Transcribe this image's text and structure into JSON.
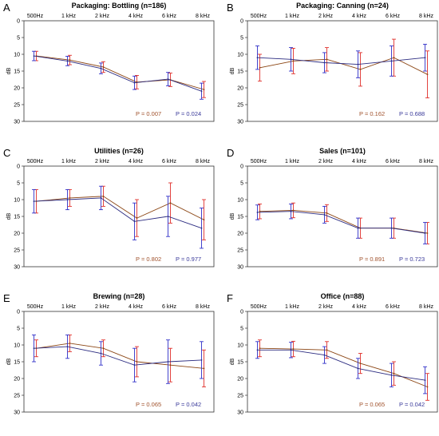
{
  "chart_data": [
    {
      "type": "line",
      "letter": "A",
      "title": "Packaging: Bottling (n=186)",
      "categories": [
        "500Hz",
        "1 kHz",
        "2 kHz",
        "4 kHz",
        "6 kHz",
        "8 kHz"
      ],
      "ylabel": "dB",
      "ylim": [
        0,
        30
      ],
      "yticks": [
        "0",
        "5",
        "10",
        "15",
        "20",
        "25",
        "30"
      ],
      "y_inverted": true,
      "series": [
        {
          "color": "#8B4513",
          "err_color": "#E0302B",
          "values": [
            10.5,
            11.7,
            13.8,
            18.3,
            17.6,
            20.5
          ],
          "err": [
            1.4,
            1.4,
            1.6,
            2.0,
            2.0,
            2.4
          ]
        },
        {
          "color": "#2B2B80",
          "err_color": "#3030C8",
          "values": [
            10.5,
            12.0,
            14.2,
            18.5,
            17.4,
            21.0
          ],
          "err": [
            1.4,
            1.4,
            1.6,
            2.0,
            2.0,
            2.4
          ]
        }
      ],
      "pvalues": [
        {
          "text": "P = 0.007",
          "color": "#A0522D"
        },
        {
          "text": "P = 0.024",
          "color": "#3A3A9A"
        }
      ]
    },
    {
      "type": "line",
      "letter": "B",
      "title": "Packaging: Canning (n=24)",
      "categories": [
        "500Hz",
        "1 kHz",
        "2 kHz",
        "4 kHz",
        "6 kHz",
        "8 kHz"
      ],
      "ylabel": "dB",
      "ylim": [
        0,
        30
      ],
      "yticks": [
        "0",
        "5",
        "10",
        "15",
        "20",
        "25",
        "30"
      ],
      "y_inverted": true,
      "series": [
        {
          "color": "#8B4513",
          "err_color": "#E0302B",
          "values": [
            14.0,
            12.0,
            11.5,
            14.5,
            11.0,
            16.0
          ],
          "err": [
            4.0,
            3.8,
            3.5,
            5.0,
            5.5,
            7.0
          ]
        },
        {
          "color": "#2B2B80",
          "err_color": "#3030C8",
          "values": [
            11.0,
            11.5,
            12.5,
            13.0,
            12.0,
            11.0
          ],
          "err": [
            3.5,
            3.5,
            3.0,
            4.0,
            4.5,
            4.0
          ]
        }
      ],
      "pvalues": [
        {
          "text": "P = 0.162",
          "color": "#A0522D"
        },
        {
          "text": "P = 0.688",
          "color": "#3A3A9A"
        }
      ]
    },
    {
      "type": "line",
      "letter": "C",
      "title": "Utilities (n=26)",
      "categories": [
        "500Hz",
        "1 kHz",
        "2 kHz",
        "4 kHz",
        "6 kHz",
        "8 kHz"
      ],
      "ylabel": "dB",
      "ylim": [
        0,
        30
      ],
      "yticks": [
        "0",
        "5",
        "10",
        "15",
        "20",
        "25",
        "30"
      ],
      "y_inverted": true,
      "series": [
        {
          "color": "#8B4513",
          "err_color": "#E0302B",
          "values": [
            10.5,
            9.5,
            9.0,
            15.5,
            11.0,
            16.0
          ],
          "err": [
            3.5,
            2.5,
            3.0,
            5.5,
            6.0,
            6.0
          ]
        },
        {
          "color": "#2B2B80",
          "err_color": "#3030C8",
          "values": [
            10.5,
            10.0,
            9.5,
            16.5,
            15.0,
            18.5
          ],
          "err": [
            3.5,
            3.0,
            3.5,
            5.5,
            6.0,
            6.0
          ]
        }
      ],
      "pvalues": [
        {
          "text": "P = 0.802",
          "color": "#A0522D"
        },
        {
          "text": "P = 0.977",
          "color": "#3A3A9A"
        }
      ]
    },
    {
      "type": "line",
      "letter": "D",
      "title": "Sales (n=101)",
      "categories": [
        "500Hz",
        "1 kHz",
        "2 kHz",
        "4 kHz",
        "6 kHz",
        "8 kHz"
      ],
      "ylabel": "dB",
      "ylim": [
        0,
        30
      ],
      "yticks": [
        "0",
        "5",
        "10",
        "15",
        "20",
        "25",
        "30"
      ],
      "y_inverted": true,
      "series": [
        {
          "color": "#8B4513",
          "err_color": "#E0302B",
          "values": [
            13.5,
            13.2,
            14.0,
            18.5,
            18.5,
            20.0
          ],
          "err": [
            2.2,
            2.2,
            2.5,
            3.0,
            3.0,
            3.2
          ]
        },
        {
          "color": "#2B2B80",
          "err_color": "#3030C8",
          "values": [
            13.8,
            13.5,
            14.5,
            18.5,
            18.5,
            20.0
          ],
          "err": [
            2.2,
            2.2,
            2.5,
            3.0,
            3.0,
            3.2
          ]
        }
      ],
      "pvalues": [
        {
          "text": "P = 0.891",
          "color": "#A0522D"
        },
        {
          "text": "P = 0.723",
          "color": "#3A3A9A"
        }
      ]
    },
    {
      "type": "line",
      "letter": "E",
      "title": "Brewing (n=28)",
      "categories": [
        "500Hz",
        "1 kHz",
        "2 kHz",
        "4 kHz",
        "6 kHz",
        "8 kHz"
      ],
      "ylabel": "dB",
      "ylim": [
        0,
        30
      ],
      "yticks": [
        "0",
        "5",
        "10",
        "15",
        "20",
        "25",
        "30"
      ],
      "y_inverted": true,
      "series": [
        {
          "color": "#8B4513",
          "err_color": "#E0302B",
          "values": [
            11.0,
            9.5,
            11.0,
            15.0,
            16.0,
            17.0
          ],
          "err": [
            2.5,
            2.5,
            2.5,
            4.5,
            5.0,
            5.5
          ]
        },
        {
          "color": "#2B2B80",
          "err_color": "#3030C8",
          "values": [
            11.0,
            10.5,
            12.5,
            16.0,
            15.0,
            14.5
          ],
          "err": [
            4.0,
            3.5,
            3.5,
            5.0,
            6.5,
            5.5
          ]
        }
      ],
      "pvalues": [
        {
          "text": "P = 0.065",
          "color": "#A0522D"
        },
        {
          "text": "P = 0.042",
          "color": "#3A3A9A"
        }
      ]
    },
    {
      "type": "line",
      "letter": "F",
      "title": "Office (n=88)",
      "categories": [
        "500Hz",
        "1 kHz",
        "2 kHz",
        "4 kHz",
        "6 kHz",
        "8 kHz"
      ],
      "ylabel": "dB",
      "ylim": [
        0,
        30
      ],
      "yticks": [
        "0",
        "5",
        "10",
        "15",
        "20",
        "25",
        "30"
      ],
      "y_inverted": true,
      "series": [
        {
          "color": "#8B4513",
          "err_color": "#E0302B",
          "values": [
            11.0,
            11.2,
            11.5,
            15.5,
            18.5,
            22.5
          ],
          "err": [
            2.5,
            2.3,
            2.5,
            3.0,
            3.5,
            4.0
          ]
        },
        {
          "color": "#2B2B80",
          "err_color": "#3030C8",
          "values": [
            11.5,
            11.5,
            13.0,
            17.0,
            19.0,
            20.5
          ],
          "err": [
            2.5,
            2.3,
            2.5,
            3.0,
            3.5,
            4.0
          ]
        }
      ],
      "pvalues": [
        {
          "text": "P = 0.065",
          "color": "#A0522D"
        },
        {
          "text": "P = 0.042",
          "color": "#3A3A9A"
        }
      ]
    }
  ]
}
